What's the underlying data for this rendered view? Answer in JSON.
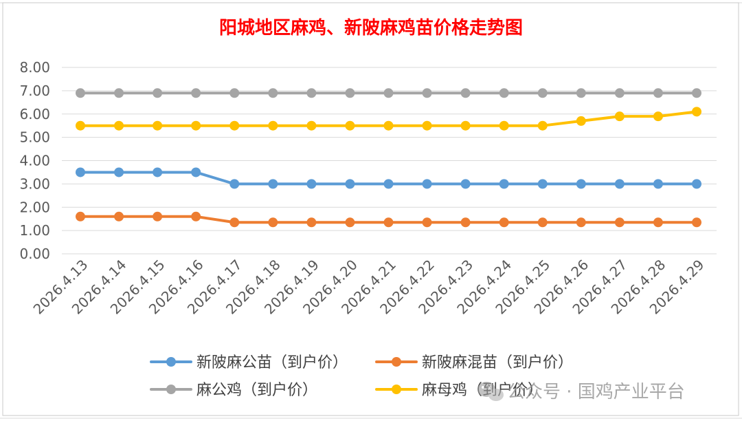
{
  "chart_data": {
    "type": "line",
    "title": "阳城地区麻鸡、新陂麻鸡苗价格走势图",
    "xlabel": "",
    "ylabel": "",
    "ylim": [
      0,
      8
    ],
    "yticks": [
      "0.00",
      "1.00",
      "2.00",
      "3.00",
      "4.00",
      "5.00",
      "6.00",
      "7.00",
      "8.00"
    ],
    "grid": true,
    "legend_position": "bottom",
    "categories": [
      "2026.4.13",
      "2026.4.14",
      "2026.4.15",
      "2026.4.16",
      "2026.4.17",
      "2026.4.18",
      "2026.4.19",
      "2026.4.20",
      "2026.4.21",
      "2026.4.22",
      "2026.4.23",
      "2026.4.24",
      "2026.4.25",
      "2026.4.26",
      "2026.4.27",
      "2026.4.28",
      "2026.4.29"
    ],
    "series": [
      {
        "name": "新陂麻公苗（到户价）",
        "color": "#5b9bd5",
        "values": [
          3.5,
          3.5,
          3.5,
          3.5,
          3.0,
          3.0,
          3.0,
          3.0,
          3.0,
          3.0,
          3.0,
          3.0,
          3.0,
          3.0,
          3.0,
          3.0,
          3.0
        ]
      },
      {
        "name": "新陂麻混苗（到户价）",
        "color": "#ed7d31",
        "values": [
          1.6,
          1.6,
          1.6,
          1.6,
          1.35,
          1.35,
          1.35,
          1.35,
          1.35,
          1.35,
          1.35,
          1.35,
          1.35,
          1.35,
          1.35,
          1.35,
          1.35
        ]
      },
      {
        "name": "麻公鸡（到户价）",
        "color": "#a5a5a5",
        "values": [
          6.9,
          6.9,
          6.9,
          6.9,
          6.9,
          6.9,
          6.9,
          6.9,
          6.9,
          6.9,
          6.9,
          6.9,
          6.9,
          6.9,
          6.9,
          6.9,
          6.9
        ]
      },
      {
        "name": "麻母鸡（到户价）",
        "color": "#ffc000",
        "values": [
          5.5,
          5.5,
          5.5,
          5.5,
          5.5,
          5.5,
          5.5,
          5.5,
          5.5,
          5.5,
          5.5,
          5.5,
          5.5,
          5.7,
          5.9,
          5.9,
          6.1
        ]
      }
    ]
  },
  "watermark": {
    "text": "公众号 · 国鸡产业平台",
    "icon": "wechat-icon"
  }
}
